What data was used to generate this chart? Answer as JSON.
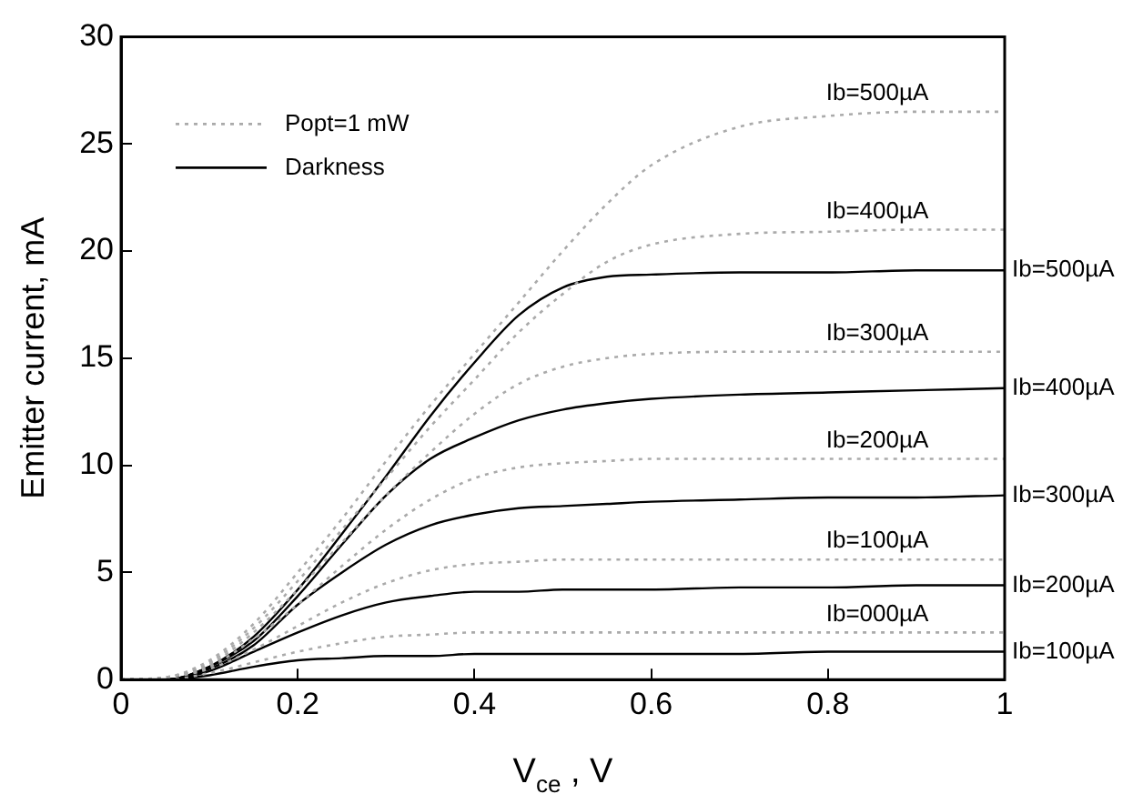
{
  "chart_data": {
    "type": "line",
    "xlabel": "V$_{ce}$ , V",
    "ylabel": "Emitter current, mA",
    "xlim": [
      0,
      1
    ],
    "ylim": [
      0,
      30
    ],
    "xticks": [
      0,
      0.2,
      0.4,
      0.6,
      0.8,
      1
    ],
    "yticks": [
      0,
      5,
      10,
      15,
      20,
      25,
      30
    ],
    "grid": false,
    "marker": "none",
    "annotations": [
      "Popt=1 mW",
      "Darkness"
    ],
    "x": [
      0,
      0.05,
      0.1,
      0.15,
      0.2,
      0.25,
      0.3,
      0.35,
      0.4,
      0.45,
      0.5,
      0.55,
      0.6,
      0.7,
      0.8,
      0.9,
      1
    ],
    "series": [
      {
        "name": "Ib=500µA",
        "color": "#aaaaaa",
        "line_style": "dotted",
        "values": [
          0,
          0.1,
          0.9,
          2.6,
          5,
          7.5,
          10.2,
          12.8,
          15.2,
          17.6,
          20,
          22.2,
          24,
          25.8,
          26.3,
          26.5,
          26.5
        ]
      },
      {
        "name": "Ib=400µA",
        "color": "#aaaaaa",
        "line_style": "dotted",
        "values": [
          0,
          0.1,
          0.8,
          2.4,
          4.6,
          7,
          9.4,
          11.8,
          14,
          16.2,
          18,
          19.5,
          20.3,
          20.8,
          20.9,
          21,
          21
        ]
      },
      {
        "name": "Ib=300µA",
        "color": "#aaaaaa",
        "line_style": "dotted",
        "values": [
          0,
          0.1,
          0.7,
          2.2,
          4.2,
          6.4,
          8.6,
          10.6,
          12.4,
          13.8,
          14.6,
          15,
          15.2,
          15.3,
          15.3,
          15.3,
          15.3
        ]
      },
      {
        "name": "Ib=200µA",
        "color": "#aaaaaa",
        "line_style": "dotted",
        "values": [
          0,
          0.1,
          0.6,
          1.9,
          3.5,
          5.3,
          7,
          8.4,
          9.4,
          9.9,
          10.1,
          10.2,
          10.3,
          10.3,
          10.3,
          10.3,
          10.3
        ]
      },
      {
        "name": "Ib=100µA",
        "color": "#aaaaaa",
        "line_style": "dotted",
        "values": [
          0,
          0.1,
          0.5,
          1.4,
          2.5,
          3.6,
          4.5,
          5.1,
          5.4,
          5.5,
          5.6,
          5.6,
          5.6,
          5.6,
          5.6,
          5.6,
          5.6
        ]
      },
      {
        "name": "Ib=000µA",
        "color": "#aaaaaa",
        "line_style": "dotted",
        "values": [
          0,
          0,
          0.3,
          0.8,
          1.3,
          1.7,
          2,
          2.1,
          2.2,
          2.2,
          2.2,
          2.2,
          2.2,
          2.2,
          2.2,
          2.2,
          2.2
        ]
      },
      {
        "name": "Ib=500µA",
        "color": "#000000",
        "line_style": "solid",
        "values": [
          0,
          0,
          0.6,
          2,
          4.2,
          6.8,
          9.5,
          12.3,
          14.8,
          17,
          18.3,
          18.8,
          18.9,
          19,
          19,
          19.1,
          19.1
        ]
      },
      {
        "name": "Ib=400µA",
        "color": "#000000",
        "line_style": "solid",
        "values": [
          0,
          0,
          0.6,
          1.8,
          3.9,
          6.3,
          8.6,
          10.3,
          11.3,
          12.1,
          12.6,
          12.9,
          13.1,
          13.3,
          13.4,
          13.5,
          13.6
        ]
      },
      {
        "name": "Ib=300µA",
        "color": "#000000",
        "line_style": "solid",
        "values": [
          0,
          0,
          0.5,
          1.6,
          3.5,
          5,
          6.3,
          7.2,
          7.7,
          8,
          8.1,
          8.2,
          8.3,
          8.4,
          8.5,
          8.5,
          8.6
        ]
      },
      {
        "name": "Ib=200µA",
        "color": "#000000",
        "line_style": "solid",
        "values": [
          0,
          0,
          0.4,
          1.3,
          2.2,
          3,
          3.6,
          3.9,
          4.1,
          4.1,
          4.2,
          4.2,
          4.2,
          4.3,
          4.3,
          4.4,
          4.4
        ]
      },
      {
        "name": "Ib=100µA",
        "color": "#000000",
        "line_style": "solid",
        "values": [
          0,
          0,
          0.2,
          0.6,
          0.9,
          1,
          1.1,
          1.1,
          1.2,
          1.2,
          1.2,
          1.2,
          1.2,
          1.2,
          1.3,
          1.3,
          1.3
        ]
      }
    ]
  }
}
